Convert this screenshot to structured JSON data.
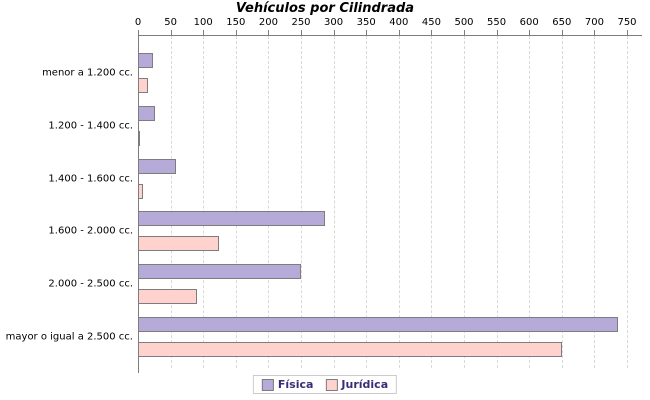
{
  "title": "Vehículos por Cilindrada",
  "colors": {
    "fisica_fill": "#b5aad8",
    "juridica_fill": "#ffd2cd",
    "bar_border": "#7d7d7d",
    "axis": "#7d7d7d",
    "gridline": "#d9d9d9",
    "legend_text": "#3a2d78",
    "legend_border": "#cccccc",
    "title_text": "#000000"
  },
  "legend": {
    "items": [
      {
        "label": "Física",
        "color": "#b5aad8"
      },
      {
        "label": "Jurídica",
        "color": "#ffd2cd"
      }
    ]
  },
  "chart_data": {
    "type": "bar",
    "orientation": "horizontal",
    "title": "Vehículos por Cilindrada",
    "xlabel": "",
    "ylabel": "",
    "categories": [
      "menor a 1.200 cc.",
      "1.200 - 1.400 cc.",
      "1.400 - 1.600 cc.",
      "1.600 - 2.000 cc.",
      "2.000 - 2.500 cc.",
      "mayor o igual a 2.500 cc."
    ],
    "series": [
      {
        "name": "Física",
        "color": "#b5aad8",
        "values": [
          23,
          26,
          58,
          287,
          250,
          736
        ]
      },
      {
        "name": "Jurídica",
        "color": "#ffd2cd",
        "values": [
          15,
          1,
          8,
          124,
          90,
          650
        ]
      }
    ],
    "xticks": [
      0,
      50,
      100,
      150,
      200,
      250,
      300,
      350,
      400,
      450,
      500,
      550,
      600,
      650,
      700,
      750
    ],
    "xlim": [
      0,
      773
    ],
    "grid": "vertical-dashed",
    "axis_position": "top",
    "legend_position": "bottom"
  }
}
